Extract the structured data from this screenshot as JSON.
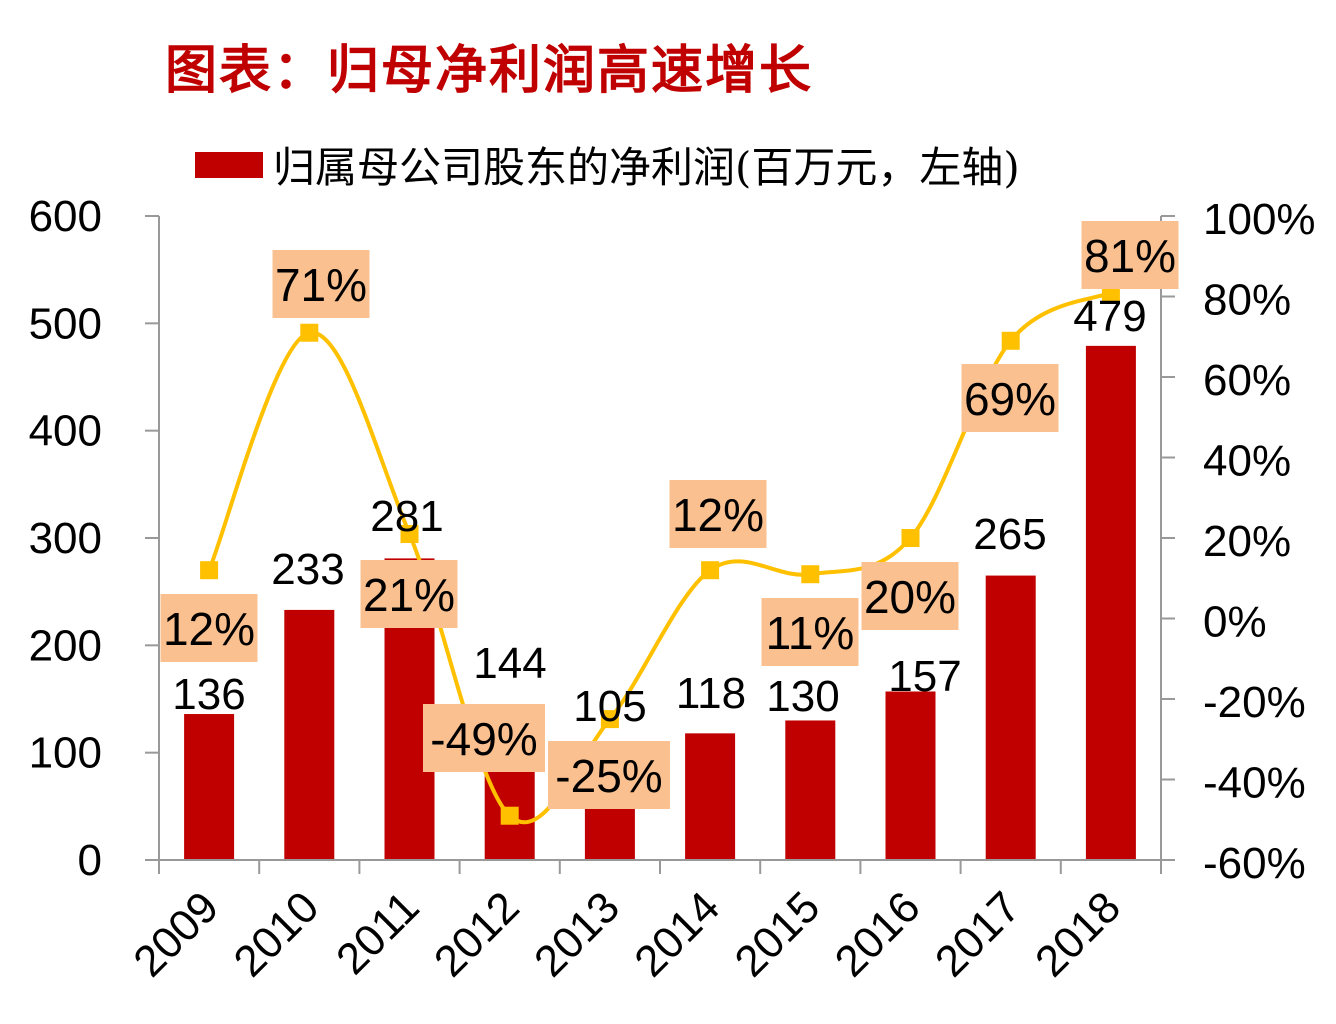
{
  "title": "图表：归母净利润高速增长",
  "legend": {
    "label": "归属母公司股东的净利润(百万元，左轴)",
    "color": "#C00000"
  },
  "chart_data": {
    "type": "bar",
    "categories": [
      "2009",
      "2010",
      "2011",
      "2012",
      "2013",
      "2014",
      "2015",
      "2016",
      "2017",
      "2018"
    ],
    "series": [
      {
        "name": "归属母公司股东的净利润(百万元，左轴)",
        "type": "bar",
        "axis": "left",
        "color": "#C00000",
        "values": [
          136,
          233,
          281,
          144,
          105,
          118,
          130,
          157,
          265,
          479
        ]
      },
      {
        "type": "line",
        "axis": "right",
        "color": "#FFC000",
        "unit": "%",
        "values": [
          12,
          71,
          21,
          -49,
          -25,
          12,
          11,
          20,
          69,
          81
        ]
      }
    ],
    "left_axis": {
      "ylim": [
        0,
        600
      ],
      "ticks": [
        "0",
        "100",
        "200",
        "300",
        "400",
        "500",
        "600"
      ]
    },
    "right_axis": {
      "ylim": [
        -60,
        100
      ],
      "ticks": [
        "-60%",
        "-40%",
        "-20%",
        "0%",
        "20%",
        "40%",
        "60%",
        "80%",
        "100%"
      ]
    },
    "label_box_color": "#FAC090",
    "grid": false
  }
}
